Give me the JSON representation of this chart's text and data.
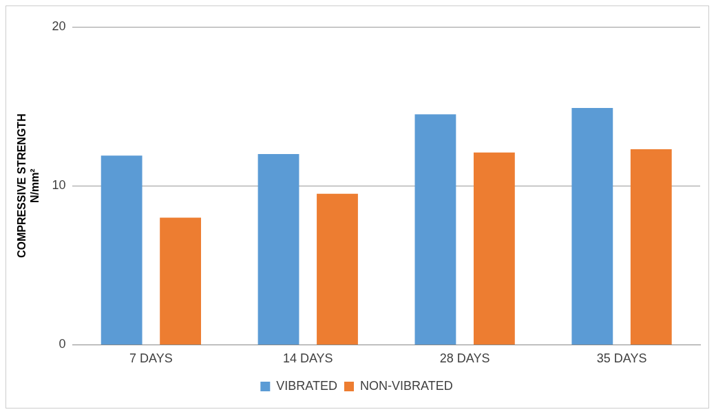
{
  "chart_data": {
    "type": "bar",
    "ylabel": "COMPRESSIVE STRENGTH\nN/mm²",
    "categories": [
      "7 DAYS",
      "14 DAYS",
      "28 DAYS",
      "35 DAYS"
    ],
    "series": [
      {
        "name": "VIBRATED",
        "color": "#5b9bd5",
        "values": [
          11.9,
          12.0,
          14.5,
          14.9
        ]
      },
      {
        "name": "NON-VIBRATED",
        "color": "#ed7d31",
        "values": [
          8.0,
          9.5,
          12.1,
          12.3
        ]
      }
    ],
    "ylim": [
      0,
      20
    ],
    "yticks": [
      0,
      10,
      20
    ],
    "grid": "y",
    "legend": "bottom"
  }
}
